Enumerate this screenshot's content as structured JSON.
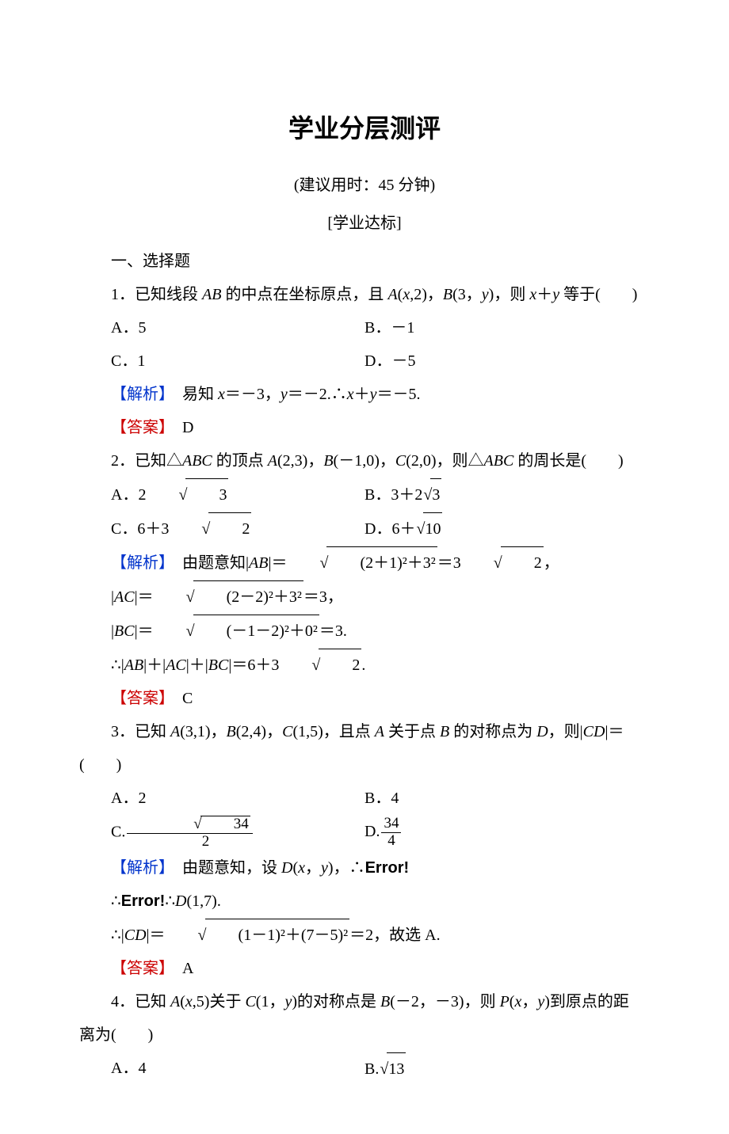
{
  "title": "学业分层测评",
  "subtitle": "(建议用时：45 分钟)",
  "section_header": "[学业达标]",
  "section_1": "一、选择题",
  "colors": {
    "analysis_label": "#0033cc",
    "answer_label": "#cc0000",
    "error_text": "#1a1a1a",
    "body_text": "#000000",
    "background": "#ffffff"
  },
  "labels": {
    "analysis": "【解析】",
    "answer": "【答案】",
    "error": "Error!"
  },
  "q1": {
    "stem_pre": "1．已知线段 ",
    "stem_mid1": " 的中点在坐标原点，且 ",
    "stem_mid2": "，则 ",
    "stem_end": " 等于(　　)",
    "A_v": "5",
    "B_v": "－1",
    "C_v": "1",
    "D_v": "－5",
    "analysis_text": "易知 ",
    "analysis_eq": "＝－3，",
    "analysis_eq2": "＝－2.∴",
    "analysis_eq3": "＝－5.",
    "answer": "D"
  },
  "q2": {
    "stem_pre": "2．已知△",
    "stem_mid1": " 的顶点 ",
    "stem_mid2": "，则△",
    "stem_end": " 的周长是(　　)",
    "A_coef": "2",
    "A_rad": "3",
    "B_pre": "3＋2",
    "B_rad": "3",
    "C_pre": "6＋3",
    "C_rad": "2",
    "D_pre": "6＋",
    "D_rad": "10",
    "analysis_l1_pre": "由题意知|",
    "analysis_l1_mid": "|＝",
    "analysis_l1_inside": "(2＋1)²＋3²",
    "analysis_l1_eq": "＝3",
    "analysis_l1_rad": "2",
    "analysis_l2_inside": "(2－2)²＋3²",
    "analysis_l2_eq": "＝3，",
    "analysis_l3_inside": "(－1－2)²＋0²",
    "analysis_l3_eq": "＝3.",
    "analysis_l4_pre": "∴|",
    "analysis_l4_mid": "|＋|",
    "analysis_l4_eq": "|＝6＋3",
    "analysis_l4_rad": "2",
    "answer": "C"
  },
  "q3": {
    "stem_pre": "3．已知 ",
    "stem_mid1": "，且点 ",
    "stem_mid2": " 关于点 ",
    "stem_mid3": " 的对称点为 ",
    "stem_mid4": "，则|",
    "stem_end": "|＝",
    "hang": "(　　)",
    "A_v": "2",
    "B_v": "4",
    "C_num_rad": "34",
    "C_den": "2",
    "D_num": "34",
    "D_den": "4",
    "analysis_l1_pre": "由题意知，设 ",
    "analysis_l1_mid": "，∴",
    "analysis_l2_pre": "∴",
    "analysis_l2_mid": "∴",
    "analysis_l3_pre": "∴|",
    "analysis_l3_mid": "|＝",
    "analysis_l3_inside": "(1－1)²＋(7－5)²",
    "analysis_l3_eq": "＝2，故选 A.",
    "answer": "A"
  },
  "q4": {
    "stem_pre": "4．已知 ",
    "stem_mid1": "关于 ",
    "stem_mid2": "的对称点是 ",
    "stem_mid3": "，则 ",
    "stem_end": "到原点的距",
    "stem_hang": "离为(　　)",
    "A_v": "4",
    "B_rad": "13"
  }
}
